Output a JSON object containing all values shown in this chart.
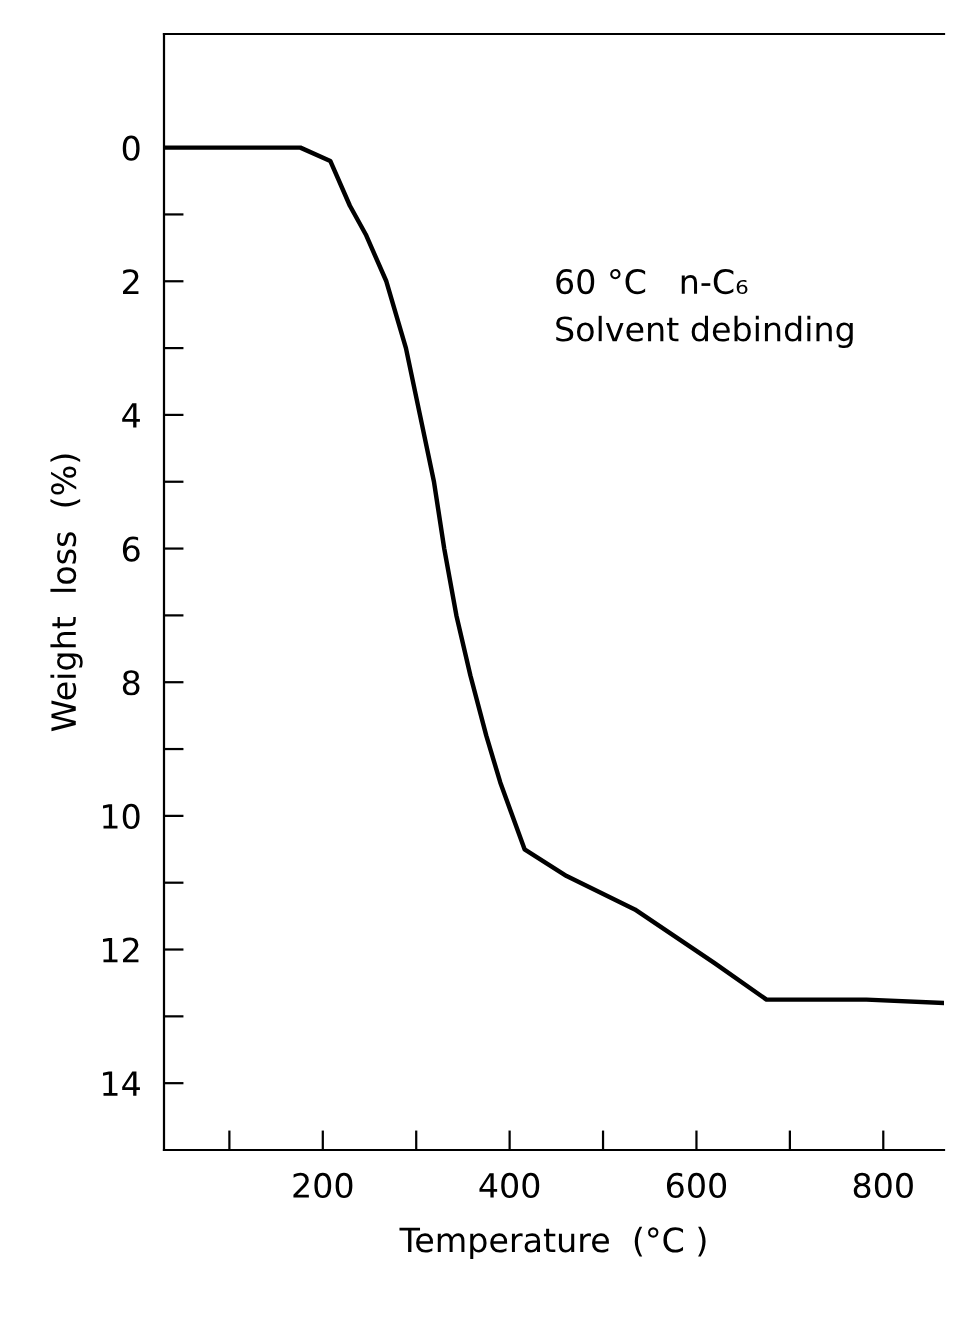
{
  "chart_data": {
    "type": "line",
    "xlabel": "Temperature  (°C )",
    "ylabel": "Weight  loss  (%)",
    "annotations": [
      "60 °C   n-C₆\nSolvent debinding"
    ],
    "x": [
      30,
      176,
      208,
      229,
      246,
      268,
      289,
      304,
      319,
      330,
      343,
      358,
      375,
      390,
      416,
      461,
      534,
      619,
      675,
      782,
      865
    ],
    "series": [
      {
        "color": "#000000",
        "values": [
          0,
          0,
          0.2,
          0.87,
          1.3,
          2.0,
          3.0,
          4.0,
          5.0,
          6.0,
          7.0,
          7.9,
          8.8,
          9.5,
          10.5,
          10.9,
          11.4,
          12.2,
          12.75,
          12.75,
          12.8
        ]
      }
    ],
    "xlim": [
      30,
      865
    ],
    "ylim": [
      15,
      -1.7
    ],
    "xticks": [
      {
        "value": 100,
        "label": null
      },
      200,
      {
        "value": 300,
        "label": null
      },
      400,
      {
        "value": 500,
        "label": null
      },
      600,
      {
        "value": 700,
        "label": null
      },
      800
    ],
    "yticks": [
      0,
      {
        "value": 1,
        "label": null
      },
      2,
      {
        "value": 3,
        "label": null
      },
      4,
      {
        "value": 5,
        "label": null
      },
      6,
      {
        "value": 7,
        "label": null
      },
      8,
      {
        "value": 9,
        "label": null
      },
      10,
      {
        "value": 11,
        "label": null
      },
      12,
      {
        "value": 13,
        "label": null
      },
      14
    ],
    "grid": false,
    "legend": false,
    "marker": "none",
    "line_style": "solid"
  }
}
